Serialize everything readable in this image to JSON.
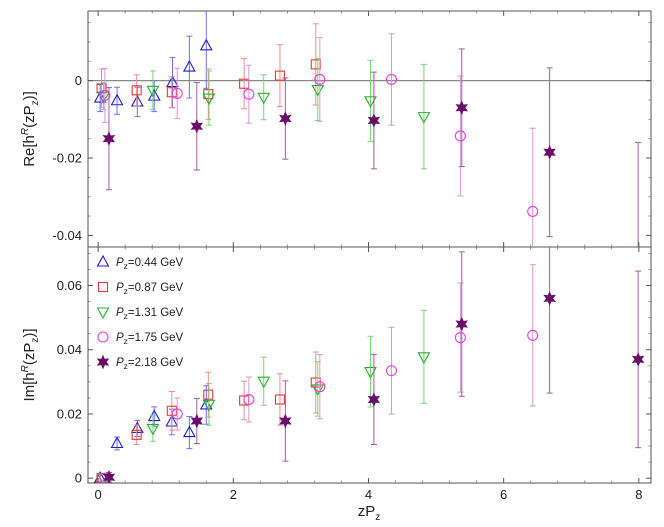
{
  "chart_data": [
    {
      "type": "scatter",
      "ylabel_text": "Re[h",
      "ylabel_sup": "R",
      "ylabel_tail": "(zP",
      "ylabel_sub": "z",
      "ylabel_end": ")]",
      "ylim": [
        -0.043,
        0.018
      ],
      "yticks": [
        0,
        -0.02,
        -0.04
      ],
      "ytick_labels": [
        "0",
        "-0.02",
        "-0.04"
      ],
      "zero_line": true,
      "series": [
        {
          "key": "p044",
          "values": [
            [
              0.03,
              -0.0045,
              0.0035
            ],
            [
              0.28,
              -0.0052,
              0.0035
            ],
            [
              0.58,
              -0.0055,
              0.0038
            ],
            [
              0.83,
              -0.004,
              0.004
            ],
            [
              1.1,
              -0.0005,
              0.0065
            ],
            [
              1.35,
              0.0035,
              0.008
            ],
            [
              1.6,
              0.009,
              0.011
            ]
          ]
        },
        {
          "key": "p087",
          "values": [
            [
              0.05,
              -0.002,
              0.005
            ],
            [
              0.57,
              -0.0025,
              0.004
            ],
            [
              1.09,
              -0.003,
              0.004
            ],
            [
              1.63,
              -0.0035,
              0.0065
            ],
            [
              2.16,
              -0.0008,
              0.0065
            ],
            [
              2.69,
              0.0013,
              0.008
            ],
            [
              3.22,
              0.0042,
              0.0105
            ]
          ]
        },
        {
          "key": "p131",
          "values": [
            [
              0.08,
              -0.004,
              0.0035
            ],
            [
              0.81,
              -0.0025,
              0.005
            ],
            [
              1.64,
              -0.0045,
              0.007
            ],
            [
              2.45,
              -0.0043,
              0.0058
            ],
            [
              3.25,
              -0.0023,
              0.008
            ],
            [
              4.03,
              -0.0052,
              0.0105
            ],
            [
              4.82,
              -0.0093,
              0.0135
            ]
          ]
        },
        {
          "key": "p175",
          "values": [
            [
              0.1,
              -0.0038,
              0.007
            ],
            [
              1.17,
              -0.0033,
              0.0065
            ],
            [
              2.23,
              -0.0035,
              0.0075
            ],
            [
              3.28,
              0.0003,
              0.0108
            ],
            [
              4.34,
              0.0003,
              0.0118
            ],
            [
              5.36,
              -0.0143,
              0.0155
            ],
            [
              6.43,
              -0.0338,
              0.0215
            ]
          ]
        },
        {
          "key": "p218",
          "values": [
            [
              0.16,
              -0.015,
              0.0132
            ],
            [
              1.46,
              -0.0118,
              0.0113
            ],
            [
              2.77,
              -0.0098,
              0.0105
            ],
            [
              4.08,
              -0.0103,
              0.0125
            ],
            [
              5.38,
              -0.007,
              0.0152
            ],
            [
              6.68,
              -0.0185,
              0.0218
            ],
            [
              7.99,
              -0.048,
              0.032
            ]
          ]
        }
      ]
    },
    {
      "type": "scatter",
      "ylabel_text": "Im[h",
      "ylabel_sup": "R",
      "ylabel_tail": "(zP",
      "ylabel_sub": "z",
      "ylabel_end": ")]",
      "ylim": [
        -0.0015,
        0.072
      ],
      "yticks": [
        0,
        0.02,
        0.04,
        0.06
      ],
      "ytick_labels": [
        "0",
        "0.02",
        "0.04",
        "0.06"
      ],
      "zero_line": false,
      "series": [
        {
          "key": "p044",
          "values": [
            [
              0.03,
              0,
              0
            ],
            [
              0.28,
              0.0108,
              0.002
            ],
            [
              0.58,
              0.0155,
              0.0025
            ],
            [
              0.83,
              0.0192,
              0.003
            ],
            [
              1.09,
              0.0175,
              0.004
            ],
            [
              1.35,
              0.0142,
              0.005
            ],
            [
              1.6,
              0.0228,
              0.006
            ]
          ]
        },
        {
          "key": "p087",
          "values": [
            [
              0.05,
              0,
              0
            ],
            [
              0.57,
              0.0135,
              0.003
            ],
            [
              1.09,
              0.021,
              0.006
            ],
            [
              1.63,
              0.026,
              0.007
            ],
            [
              2.16,
              0.0242,
              0.006
            ],
            [
              2.69,
              0.0245,
              0.008
            ],
            [
              3.22,
              0.0298,
              0.0095
            ]
          ]
        },
        {
          "key": "p131",
          "values": [
            [
              0.08,
              0,
              0
            ],
            [
              0.81,
              0.0155,
              0.004
            ],
            [
              1.64,
              0.023,
              0.0065
            ],
            [
              2.45,
              0.0302,
              0.0075
            ],
            [
              3.25,
              0.0278,
              0.0085
            ],
            [
              4.03,
              0.0332,
              0.011
            ],
            [
              4.82,
              0.0378,
              0.0145
            ]
          ]
        },
        {
          "key": "p175",
          "values": [
            [
              0.1,
              0,
              0
            ],
            [
              1.17,
              0.02,
              0.005
            ],
            [
              2.23,
              0.0245,
              0.007
            ],
            [
              3.28,
              0.0285,
              0.01
            ],
            [
              4.34,
              0.0335,
              0.0135
            ],
            [
              5.36,
              0.0438,
              0.017
            ],
            [
              6.43,
              0.0445,
              0.022
            ]
          ]
        },
        {
          "key": "p218",
          "values": [
            [
              0.16,
              0.0003,
              0.0015
            ],
            [
              1.46,
              0.0178,
              0.007
            ],
            [
              2.77,
              0.0178,
              0.0125
            ],
            [
              4.08,
              0.0245,
              0.014
            ],
            [
              5.38,
              0.048,
              0.0225
            ],
            [
              6.68,
              0.056,
              0.0295
            ],
            [
              7.99,
              0.037,
              0.0275
            ]
          ]
        }
      ]
    }
  ],
  "shared": {
    "xlim": [
      -0.15,
      8.18
    ],
    "xticks": [
      0,
      2,
      4,
      6,
      8
    ],
    "xtick_labels": [
      "0",
      "2",
      "4",
      "6",
      "8"
    ],
    "xlabel_main": "zP",
    "xlabel_sub": "z"
  },
  "legend": {
    "placement": "top-left of lower panel",
    "entries": [
      {
        "key": "p044",
        "prefix": "P",
        "sub": "z",
        "label": "=0.44 GeV",
        "marker": "triangle-up",
        "color": "#1f1fd6"
      },
      {
        "key": "p087",
        "prefix": "P",
        "sub": "z",
        "label": "=0.87 GeV",
        "marker": "square",
        "color": "#e03a3a"
      },
      {
        "key": "p131",
        "prefix": "P",
        "sub": "z",
        "label": "=1.31 GeV",
        "marker": "triangle-down",
        "color": "#27b327"
      },
      {
        "key": "p175",
        "prefix": "P",
        "sub": "z",
        "label": "=1.75 GeV",
        "marker": "circle",
        "color": "#e83ce8"
      },
      {
        "key": "p218",
        "prefix": "P",
        "sub": "z",
        "label": "=2.18 GeV",
        "marker": "star",
        "color": "#6a0d6a"
      }
    ]
  },
  "colors": {
    "p044": "#1f1fd6",
    "p044_err": "#6f6ff0",
    "p087": "#e03a3a",
    "p087_err": "#ef8c8c",
    "p131": "#27b327",
    "p131_err": "#79d679",
    "p175": "#e83ce8",
    "p175_err": "#d996d9",
    "p218": "#6a0d6a",
    "p218_err": "#a35ca3",
    "zero_line": "#888888",
    "frame": "#555555"
  }
}
